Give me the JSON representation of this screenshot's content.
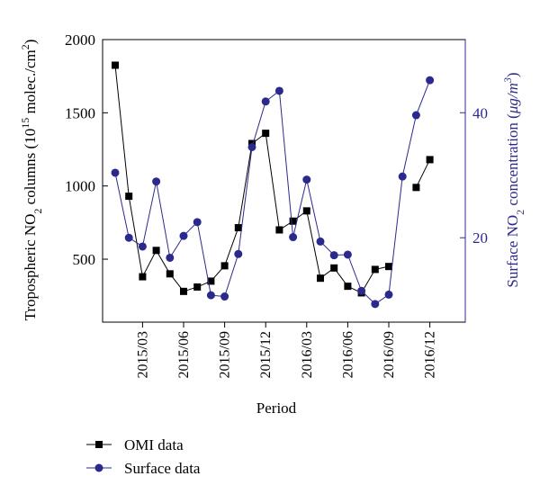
{
  "chart_data": {
    "type": "line",
    "xlabel": "Period",
    "x": [
      "2015/01",
      "2015/02",
      "2015/03",
      "2015/04",
      "2015/05",
      "2015/06",
      "2015/07",
      "2015/08",
      "2015/09",
      "2015/10",
      "2015/11",
      "2015/12",
      "2016/01",
      "2016/02",
      "2016/03",
      "2016/04",
      "2016/05",
      "2016/06",
      "2016/07",
      "2016/08",
      "2016/09",
      "2016/10",
      "2016/11",
      "2016/12"
    ],
    "xticks": [
      "2015/03",
      "2015/06",
      "2015/09",
      "2015/12",
      "2016/03",
      "2016/06",
      "2016/09",
      "2016/12"
    ],
    "left_axis": {
      "label_parts": [
        "Tropospheric NO",
        "2",
        " columns (10",
        "15",
        " molec./cm",
        "2",
        ")"
      ],
      "ylim": [
        70,
        2000
      ],
      "ticks": [
        500,
        1000,
        1500,
        2000
      ],
      "color": "#000000"
    },
    "right_axis": {
      "label_parts": [
        "Surface NO",
        "2",
        " concentration (",
        "μg/m",
        "3",
        ")"
      ],
      "ylim": [
        6.5,
        51.7
      ],
      "ticks": [
        20,
        40
      ],
      "color": "#2b2a8c"
    },
    "series": [
      {
        "name": "OMI data",
        "axis": "left",
        "color": "#000000",
        "marker": "square",
        "values": [
          1825,
          930,
          380,
          560,
          400,
          280,
          310,
          350,
          455,
          715,
          1290,
          1360,
          700,
          760,
          830,
          370,
          440,
          315,
          270,
          430,
          450,
          null,
          990,
          1180
        ]
      },
      {
        "name": "Surface data",
        "axis": "right",
        "color": "#2b2a8c",
        "marker": "circle",
        "values": [
          30.4,
          20.0,
          18.6,
          29.0,
          16.8,
          20.3,
          22.5,
          10.8,
          10.6,
          17.4,
          34.5,
          41.8,
          43.5,
          20.1,
          29.3,
          19.4,
          17.2,
          17.3,
          11.5,
          9.4,
          10.9,
          29.8,
          39.6,
          45.2
        ]
      }
    ],
    "legend": {
      "position": "bottom-left",
      "entries": [
        "OMI data",
        "Surface data"
      ]
    },
    "grid": false
  }
}
